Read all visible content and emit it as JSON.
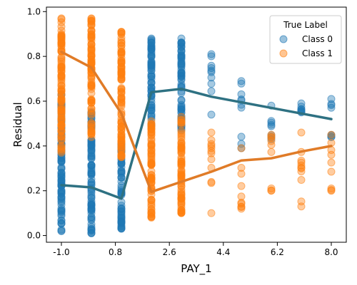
{
  "chart_data": {
    "type": "scatter",
    "xlabel": "PAY_1",
    "ylabel": "Residual",
    "x_ticks": [
      "-1.0",
      "0.8",
      "2.6",
      "4.4",
      "6.2",
      "8.0"
    ],
    "y_ticks": [
      "0.0",
      "0.2",
      "0.4",
      "0.6",
      "0.8",
      "1.0"
    ],
    "xlim": [
      -1.5,
      8.5
    ],
    "ylim": [
      -0.03,
      1.02
    ],
    "grid": false,
    "legend": {
      "title": "True Label",
      "position": "top-right",
      "entries": [
        "Class 0",
        "Class 1"
      ]
    },
    "colors": {
      "class0_points": "#1f77b4",
      "class1_points": "#ff7f0e",
      "class0_line": "#2e7182",
      "class1_line": "#e07b27"
    },
    "scatter": {
      "class0": [
        {
          "x": -1,
          "ymin": 0.02,
          "ymax": 0.63
        },
        {
          "x": 0,
          "ymin": 0.01,
          "ymax": 0.55
        },
        {
          "x": 1,
          "ymin": 0.03,
          "ymax": 0.41
        },
        {
          "x": 2,
          "ymin": 0.49,
          "ymax": 0.88
        },
        {
          "x": 3,
          "ymin": 0.47,
          "ymax": 0.88
        },
        {
          "x": 4,
          "ymin": 0.54,
          "ymax": 0.81
        },
        {
          "x": 5,
          "ymin": 0.39,
          "ymax": 0.69
        },
        {
          "x": 6,
          "ymin": 0.43,
          "ymax": 0.58
        },
        {
          "x": 7,
          "ymin": 0.55,
          "ymax": 0.59
        },
        {
          "x": 8,
          "ymin": 0.44,
          "ymax": 0.61
        }
      ],
      "class1": [
        {
          "x": -1,
          "ymin": 0.37,
          "ymax": 0.97
        },
        {
          "x": 0,
          "ymin": 0.44,
          "ymax": 0.97
        },
        {
          "x": 1,
          "ymin": 0.35,
          "ymax": 0.91
        },
        {
          "x": 2,
          "ymin": 0.08,
          "ymax": 0.51
        },
        {
          "x": 3,
          "ymin": 0.1,
          "ymax": 0.53
        },
        {
          "x": 4,
          "ymin": 0.1,
          "ymax": 0.46
        },
        {
          "x": 5,
          "ymin": 0.12,
          "ymax": 0.39
        },
        {
          "x": 6,
          "ymin": 0.2,
          "ymax": 0.45
        },
        {
          "x": 7,
          "ymin": 0.13,
          "ymax": 0.46
        },
        {
          "x": 8,
          "ymin": 0.2,
          "ymax": 0.45
        }
      ]
    },
    "series": [
      {
        "name": "Class 0",
        "x": [
          -1,
          0,
          1,
          2,
          3,
          4,
          5,
          6,
          7,
          8
        ],
        "values": [
          0.225,
          0.215,
          0.165,
          0.64,
          0.655,
          0.62,
          0.595,
          0.57,
          0.545,
          0.52
        ]
      },
      {
        "name": "Class 1",
        "x": [
          -1,
          0,
          1,
          2,
          3,
          4,
          5,
          6,
          7,
          8
        ],
        "values": [
          0.82,
          0.75,
          0.545,
          0.195,
          0.24,
          0.285,
          0.335,
          0.345,
          0.375,
          0.4
        ]
      }
    ]
  }
}
